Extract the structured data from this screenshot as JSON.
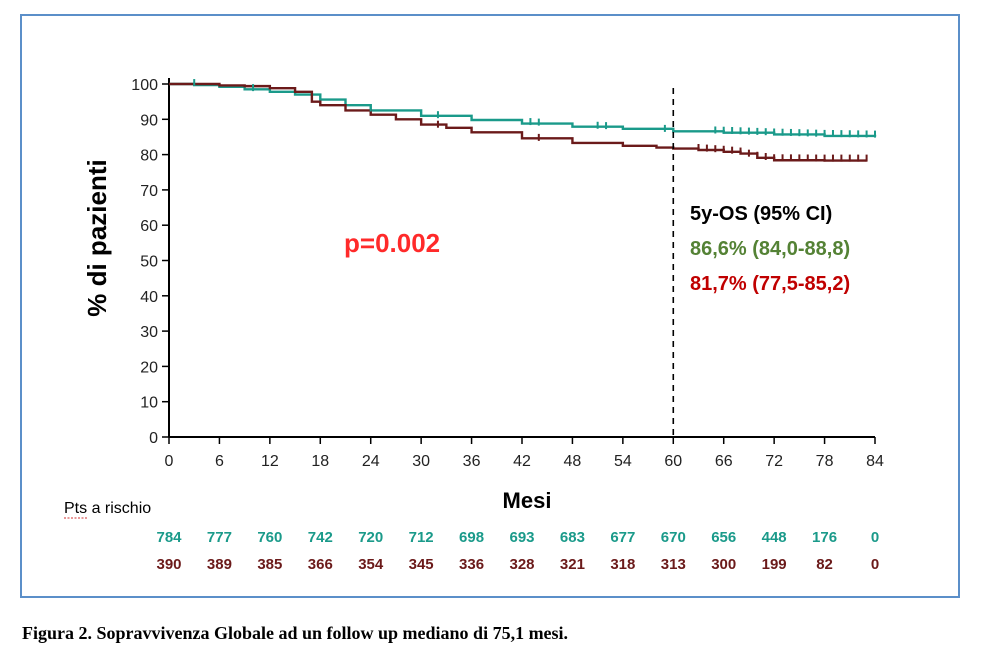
{
  "chart_data": {
    "type": "line",
    "xlabel": "Mesi",
    "ylabel": "% di pazienti",
    "xlim": [
      0,
      84
    ],
    "ylim": [
      0,
      100
    ],
    "xticks": [
      0,
      6,
      12,
      18,
      24,
      30,
      36,
      42,
      48,
      54,
      60,
      66,
      72,
      78,
      84
    ],
    "yticks": [
      0,
      10,
      20,
      30,
      40,
      50,
      60,
      70,
      80,
      90,
      100
    ],
    "grid": false,
    "vline_x": 60,
    "p_value": "p=0.002",
    "os_header": "5y-OS  (95% CI)",
    "series": [
      {
        "color": "#1a9a8a",
        "os_label": "86,6% (84,0-88,8)",
        "os_label_color": "#548235",
        "x": [
          0,
          3,
          6,
          9,
          12,
          15,
          18,
          21,
          24,
          30,
          36,
          42,
          48,
          54,
          60,
          66,
          72,
          78,
          84
        ],
        "y": [
          100,
          99.7,
          99.2,
          98.5,
          97.8,
          97.0,
          95.6,
          94.0,
          92.5,
          91.0,
          89.8,
          88.8,
          87.9,
          87.3,
          86.6,
          86.2,
          85.7,
          85.3,
          85.1
        ],
        "censor_x": [
          3,
          10,
          24,
          32,
          43,
          44,
          51,
          52,
          59,
          65,
          66,
          67,
          68,
          69,
          70,
          71,
          72,
          73,
          74,
          75,
          76,
          77,
          78,
          79,
          80,
          81,
          82,
          83,
          84
        ]
      },
      {
        "color": "#6b1a1a",
        "os_label": "81,7% (77,5-85,2)",
        "os_label_color": "#c00000",
        "x": [
          0,
          3,
          6,
          9,
          12,
          15,
          17,
          18,
          21,
          24,
          27,
          30,
          33,
          36,
          42,
          48,
          54,
          58,
          60,
          63,
          66,
          68,
          70,
          72,
          78,
          83
        ],
        "y": [
          100,
          100,
          99.6,
          99.4,
          98.8,
          97.8,
          95.0,
          94.0,
          92.5,
          91.3,
          90.0,
          88.5,
          87.6,
          86.3,
          84.6,
          83.3,
          82.5,
          82.0,
          81.7,
          81.3,
          80.8,
          80.3,
          79.1,
          78.4,
          78.3,
          78.3
        ],
        "censor_x": [
          32,
          44,
          63,
          64,
          65,
          66,
          67,
          68,
          69,
          70,
          71,
          72,
          73,
          74,
          75,
          76,
          77,
          78,
          79,
          80,
          81,
          82,
          83
        ]
      }
    ]
  },
  "risk_table": {
    "header": "Pts a rischio",
    "rows": [
      {
        "color": "#1a9a8a",
        "values": [
          "784",
          "777",
          "760",
          "742",
          "720",
          "712",
          "698",
          "693",
          "683",
          "677",
          "670",
          "656",
          "448",
          "176",
          "0"
        ]
      },
      {
        "color": "#6b1a1a",
        "values": [
          "390",
          "389",
          "385",
          "366",
          "354",
          "345",
          "336",
          "328",
          "321",
          "318",
          "313",
          "300",
          "199",
          "82",
          "0"
        ]
      }
    ]
  },
  "caption": "Figura 2. Sopravvivenza Globale ad un follow up mediano di 75,1 mesi."
}
